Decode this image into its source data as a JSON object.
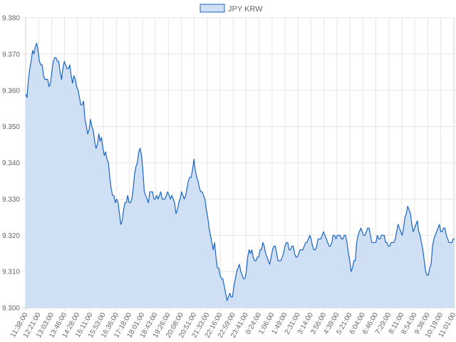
{
  "chart_data": {
    "type": "area",
    "series": [
      {
        "name": "JPY KRW",
        "color": "#1a64c8",
        "fill": "#cfe0f5",
        "values": [
          9.359,
          9.358,
          9.363,
          9.366,
          9.368,
          9.371,
          9.37,
          9.372,
          9.373,
          9.371,
          9.368,
          9.367,
          9.367,
          9.364,
          9.363,
          9.363,
          9.363,
          9.361,
          9.362,
          9.365,
          9.368,
          9.369,
          9.369,
          9.368,
          9.368,
          9.365,
          9.363,
          9.366,
          9.368,
          9.367,
          9.366,
          9.366,
          9.367,
          9.364,
          9.362,
          9.364,
          9.363,
          9.361,
          9.36,
          9.358,
          9.356,
          9.356,
          9.357,
          9.352,
          9.35,
          9.348,
          9.349,
          9.352,
          9.35,
          9.349,
          9.346,
          9.344,
          9.345,
          9.348,
          9.346,
          9.347,
          9.344,
          9.342,
          9.343,
          9.341,
          9.34,
          9.336,
          9.333,
          9.331,
          9.331,
          9.329,
          9.33,
          9.329,
          9.326,
          9.323,
          9.324,
          9.327,
          9.329,
          9.329,
          9.331,
          9.329,
          9.329,
          9.33,
          9.333,
          9.337,
          9.339,
          9.34,
          9.343,
          9.344,
          9.342,
          9.338,
          9.332,
          9.331,
          9.33,
          9.329,
          9.332,
          9.332,
          9.332,
          9.33,
          9.33,
          9.331,
          9.33,
          9.331,
          9.332,
          9.33,
          9.33,
          9.33,
          9.331,
          9.332,
          9.331,
          9.33,
          9.331,
          9.33,
          9.329,
          9.326,
          9.327,
          9.329,
          9.33,
          9.332,
          9.331,
          9.33,
          9.331,
          9.333,
          9.335,
          9.336,
          9.336,
          9.338,
          9.341,
          9.338,
          9.336,
          9.335,
          9.333,
          9.332,
          9.332,
          9.331,
          9.33,
          9.327,
          9.325,
          9.322,
          9.32,
          9.318,
          9.316,
          9.318,
          9.314,
          9.311,
          9.311,
          9.309,
          9.308,
          9.308,
          9.306,
          9.304,
          9.302,
          9.303,
          9.304,
          9.303,
          9.303,
          9.306,
          9.308,
          9.31,
          9.311,
          9.312,
          9.31,
          9.309,
          9.308,
          9.308,
          9.31,
          9.314,
          9.316,
          9.315,
          9.316,
          9.314,
          9.313,
          9.313,
          9.314,
          9.314,
          9.316,
          9.316,
          9.318,
          9.317,
          9.315,
          9.314,
          9.313,
          9.312,
          9.314,
          9.316,
          9.317,
          9.317,
          9.315,
          9.313,
          9.313,
          9.313,
          9.314,
          9.315,
          9.317,
          9.318,
          9.318,
          9.316,
          9.316,
          9.317,
          9.317,
          9.315,
          9.314,
          9.314,
          9.315,
          9.316,
          9.316,
          9.316,
          9.317,
          9.318,
          9.318,
          9.319,
          9.32,
          9.319,
          9.317,
          9.316,
          9.316,
          9.317,
          9.319,
          9.319,
          9.319,
          9.32,
          9.321,
          9.32,
          9.319,
          9.318,
          9.317,
          9.317,
          9.318,
          9.32,
          9.32,
          9.319,
          9.32,
          9.32,
          9.32,
          9.319,
          9.319,
          9.32,
          9.32,
          9.318,
          9.315,
          9.313,
          9.31,
          9.311,
          9.313,
          9.313,
          9.318,
          9.32,
          9.321,
          9.322,
          9.321,
          9.32,
          9.32,
          9.321,
          9.322,
          9.322,
          9.32,
          9.318,
          9.318,
          9.318,
          9.318,
          9.32,
          9.319,
          9.319,
          9.32,
          9.32,
          9.32,
          9.318,
          9.318,
          9.317,
          9.317,
          9.318,
          9.318,
          9.318,
          9.319,
          9.321,
          9.323,
          9.322,
          9.321,
          9.32,
          9.322,
          9.325,
          9.326,
          9.328,
          9.327,
          9.326,
          9.323,
          9.321,
          9.322,
          9.323,
          9.324,
          9.321,
          9.32,
          9.318,
          9.316,
          9.313,
          9.31,
          9.309,
          9.309,
          9.311,
          9.312,
          9.317,
          9.319,
          9.32,
          9.321,
          9.322,
          9.323,
          9.321,
          9.321,
          9.322,
          9.322,
          9.32,
          9.319,
          9.318,
          9.318,
          9.318,
          9.319,
          9.319
        ]
      }
    ],
    "x_tick_labels": [
      "11:38:00",
      "12:21:00",
      "13:03:00",
      "13:46:00",
      "14:28:00",
      "15:11:00",
      "15:53:00",
      "16:36:00",
      "17:18:00",
      "18:01:00",
      "18:43:00",
      "19:26:00",
      "20:08:00",
      "20:51:00",
      "21:33:00",
      "22:16:00",
      "22:59:00",
      "23:41:00",
      "0:24:00",
      "1:06:00",
      "1:49:00",
      "2:31:00",
      "3:14:00",
      "3:56:00",
      "4:39:00",
      "5:21:00",
      "6:04:00",
      "6:46:00",
      "7:29:00",
      "8:11:00",
      "8:54:00",
      "9:36:00",
      "10:19:00",
      "11:01:00"
    ],
    "y_tick_labels": [
      "9.380",
      "9.370",
      "9.360",
      "9.350",
      "9.340",
      "9.330",
      "9.320",
      "9.310",
      "9.300"
    ],
    "ylim": [
      9.3,
      9.38
    ],
    "grid": true,
    "legend_position": "top-center",
    "title": "",
    "xlabel": "",
    "ylabel": ""
  }
}
